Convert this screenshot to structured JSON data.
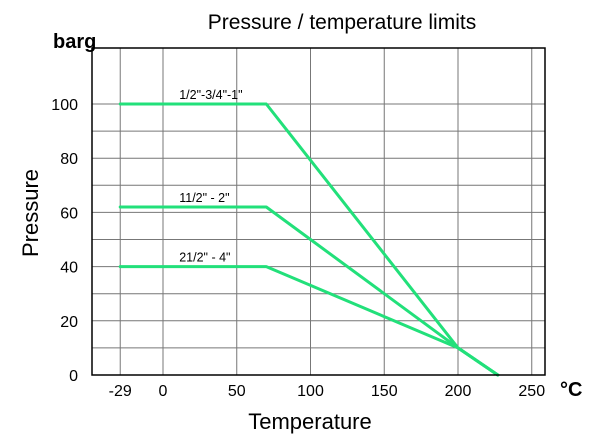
{
  "chart_data": {
    "type": "line",
    "title": "Pressure / temperature limits",
    "xlabel": "Temperature",
    "ylabel": "Pressure",
    "x_unit": "°C",
    "y_unit": "barg",
    "xlim": [
      -29,
      250
    ],
    "ylim": [
      0,
      110
    ],
    "x_ticks": [
      -29,
      0,
      50,
      100,
      150,
      200,
      250
    ],
    "y_ticks": [
      0,
      20,
      40,
      60,
      80,
      100
    ],
    "grid": true,
    "colors": {
      "series": "#22e07a",
      "grid": "#777777",
      "frame": "#000000"
    },
    "series": [
      {
        "name": "1/2\"-3/4\"-1\"",
        "points": [
          [
            -29,
            100
          ],
          [
            70,
            100
          ],
          [
            200,
            10
          ],
          [
            227,
            0
          ]
        ]
      },
      {
        "name": "11/2\" - 2\"",
        "points": [
          [
            -29,
            62
          ],
          [
            70,
            62
          ],
          [
            200,
            10
          ],
          [
            227,
            0
          ]
        ]
      },
      {
        "name": "21/2\" - 4\"",
        "points": [
          [
            -29,
            40
          ],
          [
            70,
            40
          ],
          [
            200,
            10
          ],
          [
            227,
            0
          ]
        ]
      }
    ]
  }
}
